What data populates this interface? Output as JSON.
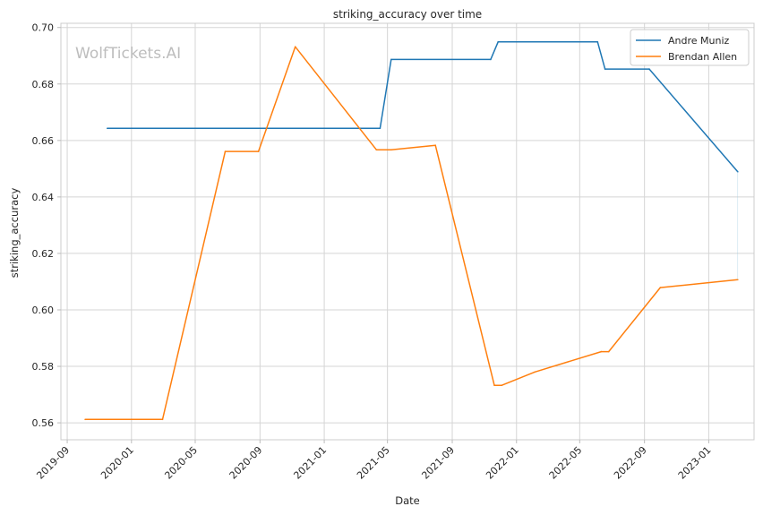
{
  "chart_data": {
    "type": "line",
    "title": "striking_accuracy over time",
    "xlabel": "Date",
    "ylabel": "striking_accuracy",
    "watermark": "WolfTickets.AI",
    "xlim": [
      "2019-08-20",
      "2023-03-28"
    ],
    "ylim": [
      0.554,
      0.7015
    ],
    "grid": true,
    "legend_position": "top-right",
    "x_ticks": [
      "2019-09",
      "2020-01",
      "2020-05",
      "2020-09",
      "2021-01",
      "2021-05",
      "2021-09",
      "2022-01",
      "2022-05",
      "2022-09",
      "2023-01"
    ],
    "y_ticks": [
      "0.56",
      "0.58",
      "0.60",
      "0.62",
      "0.64",
      "0.66",
      "0.68",
      "0.70"
    ],
    "colors": {
      "andre": "#1f77b4",
      "brendan": "#ff7f0e",
      "grid": "#d5d5d5",
      "axis": "#cccccc"
    },
    "series": [
      {
        "name": "Andre Muniz",
        "color": "#1f77b4",
        "points": [
          [
            "2019-11-16",
            0.6643
          ],
          [
            "2021-04-17",
            0.6643
          ],
          [
            "2021-05-08",
            0.6887
          ],
          [
            "2021-11-13",
            0.6887
          ],
          [
            "2021-11-27",
            0.6949
          ],
          [
            "2022-06-04",
            0.6949
          ],
          [
            "2022-06-18",
            0.6853
          ],
          [
            "2022-09-10",
            0.6853
          ],
          [
            "2023-02-25",
            0.6489
          ]
        ]
      },
      {
        "name": "Brendan Allen",
        "color": "#ff7f0e",
        "points": [
          [
            "2019-10-05",
            0.5612
          ],
          [
            "2020-02-29",
            0.5612
          ],
          [
            "2020-06-27",
            0.6561
          ],
          [
            "2020-08-29",
            0.6561
          ],
          [
            "2020-11-07",
            0.6932
          ],
          [
            "2021-04-10",
            0.6567
          ],
          [
            "2021-05-08",
            0.6567
          ],
          [
            "2021-07-31",
            0.6583
          ],
          [
            "2021-11-20",
            0.5733
          ],
          [
            "2021-12-04",
            0.5733
          ],
          [
            "2022-02-05",
            0.578
          ],
          [
            "2022-06-11",
            0.5852
          ],
          [
            "2022-06-25",
            0.5852
          ],
          [
            "2022-10-01",
            0.6079
          ],
          [
            "2023-02-25",
            0.6107
          ]
        ]
      }
    ]
  }
}
